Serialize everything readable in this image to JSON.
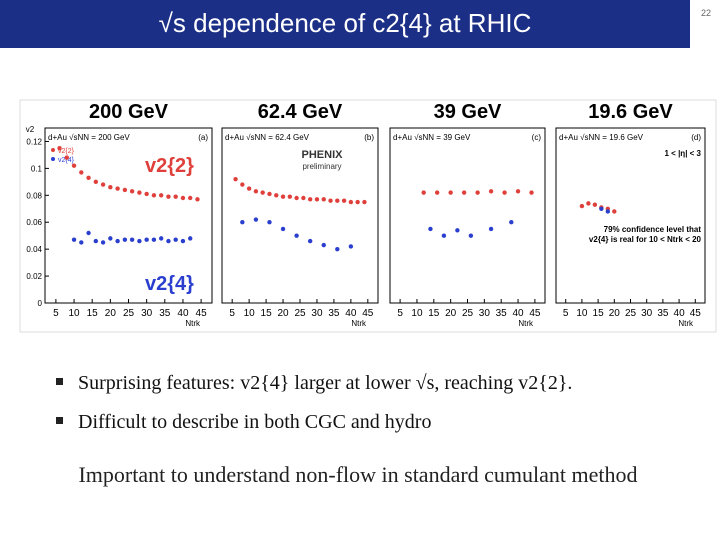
{
  "slide": {
    "title": "√s dependence of c2{4} at RHIC",
    "page_number": "22",
    "bullets": [
      "Surprising features: v2{4} larger at lower √s, reaching v2{2}.",
      "Difficult to describe in both CGC and hydro"
    ],
    "conclusion": "Important to understand non-flow in standard cumulant method"
  },
  "chart_data": [
    {
      "type": "scatter",
      "title": "200 GeV",
      "ylabel": "v2",
      "xlabel": "Ntrk",
      "annotations": [
        "d+Au √sNN = 200 GeV",
        "(a)"
      ],
      "big_labels": [
        "v2{2}",
        "v2{4}"
      ],
      "legend": true,
      "xlim": [
        2,
        48
      ],
      "xticks": [
        5,
        10,
        15,
        20,
        25,
        30,
        35,
        40,
        45
      ],
      "ylim": [
        0,
        0.13
      ],
      "yticks": [
        0,
        0.02,
        0.04,
        0.06,
        0.08,
        0.1,
        0.12
      ],
      "series": [
        {
          "name": "v2{2}",
          "color": "#e0403c",
          "x": [
            6,
            8,
            10,
            12,
            14,
            16,
            18,
            20,
            22,
            24,
            26,
            28,
            30,
            32,
            34,
            36,
            38,
            40,
            42,
            44
          ],
          "values": [
            0.115,
            0.108,
            0.102,
            0.097,
            0.093,
            0.09,
            0.088,
            0.086,
            0.085,
            0.084,
            0.083,
            0.082,
            0.081,
            0.08,
            0.08,
            0.079,
            0.079,
            0.078,
            0.078,
            0.077
          ]
        },
        {
          "name": "v2{4}",
          "color": "#2b3fcf",
          "x": [
            10,
            12,
            14,
            16,
            18,
            20,
            22,
            24,
            26,
            28,
            30,
            32,
            34,
            36,
            38,
            40,
            42
          ],
          "values": [
            0.047,
            0.045,
            0.052,
            0.046,
            0.045,
            0.048,
            0.046,
            0.047,
            0.047,
            0.046,
            0.047,
            0.047,
            0.048,
            0.046,
            0.047,
            0.046,
            0.048
          ]
        }
      ]
    },
    {
      "type": "scatter",
      "title": "62.4 GeV",
      "xlabel": "Ntrk",
      "annotations": [
        "d+Au √sNN = 62.4 GeV",
        "(b)",
        "PHENIX",
        "preliminary"
      ],
      "legend": false,
      "xlim": [
        2,
        48
      ],
      "xticks": [
        5,
        10,
        15,
        20,
        25,
        30,
        35,
        40,
        45
      ],
      "ylim": [
        0,
        0.13
      ],
      "series": [
        {
          "name": "v2{2}",
          "color": "#e0403c",
          "x": [
            6,
            8,
            10,
            12,
            14,
            16,
            18,
            20,
            22,
            24,
            26,
            28,
            30,
            32,
            34,
            36,
            38,
            40,
            42,
            44
          ],
          "values": [
            0.092,
            0.088,
            0.085,
            0.083,
            0.082,
            0.081,
            0.08,
            0.079,
            0.079,
            0.078,
            0.078,
            0.077,
            0.077,
            0.077,
            0.076,
            0.076,
            0.076,
            0.075,
            0.075,
            0.075
          ]
        },
        {
          "name": "v2{4}",
          "color": "#2b3fcf",
          "x": [
            8,
            12,
            16,
            20,
            24,
            28,
            32,
            36,
            40
          ],
          "values": [
            0.06,
            0.062,
            0.06,
            0.055,
            0.05,
            0.046,
            0.043,
            0.04,
            0.042
          ]
        }
      ]
    },
    {
      "type": "scatter",
      "title": "39 GeV",
      "xlabel": "Ntrk",
      "annotations": [
        "d+Au √sNN = 39 GeV",
        "(c)"
      ],
      "legend": false,
      "xlim": [
        2,
        48
      ],
      "xticks": [
        5,
        10,
        15,
        20,
        25,
        30,
        35,
        40,
        45
      ],
      "ylim": [
        0,
        0.13
      ],
      "series": [
        {
          "name": "v2{2}",
          "color": "#e0403c",
          "x": [
            12,
            16,
            20,
            24,
            28,
            32,
            36,
            40,
            44
          ],
          "values": [
            0.082,
            0.082,
            0.082,
            0.082,
            0.082,
            0.083,
            0.082,
            0.083,
            0.082
          ]
        },
        {
          "name": "v2{4}",
          "color": "#2b3fcf",
          "x": [
            14,
            18,
            22,
            26,
            32,
            38
          ],
          "values": [
            0.055,
            0.05,
            0.054,
            0.05,
            0.055,
            0.06
          ]
        }
      ]
    },
    {
      "type": "scatter",
      "title": "19.6 GeV",
      "xlabel": "Ntrk",
      "annotations": [
        "d+Au √sNN = 19.6 GeV",
        "(d)",
        "1 < |η| < 3",
        "79% confidence level that",
        "v2{4} is real for 10 < Ntrk < 20"
      ],
      "legend": false,
      "xlim": [
        2,
        48
      ],
      "xticks": [
        5,
        10,
        15,
        20,
        25,
        30,
        35,
        40,
        45
      ],
      "ylim": [
        0,
        0.13
      ],
      "series": [
        {
          "name": "v2{2}",
          "color": "#e0403c",
          "x": [
            10,
            12,
            14,
            16,
            18,
            20
          ],
          "values": [
            0.072,
            0.074,
            0.073,
            0.071,
            0.07,
            0.068
          ]
        },
        {
          "name": "v2{4}",
          "color": "#2b3fcf",
          "x": [
            16,
            18
          ],
          "values": [
            0.07,
            0.068
          ]
        }
      ]
    }
  ]
}
